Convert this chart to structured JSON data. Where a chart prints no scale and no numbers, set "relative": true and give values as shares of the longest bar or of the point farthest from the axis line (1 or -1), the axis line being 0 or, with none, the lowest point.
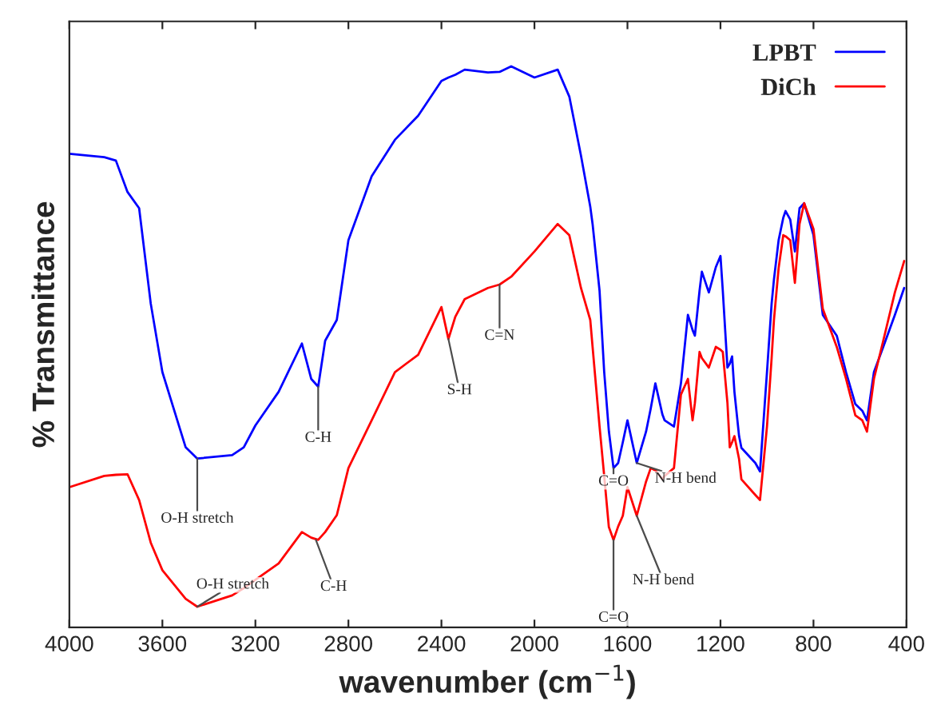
{
  "chart_data": {
    "type": "line",
    "relative": true,
    "xlabel": "wavenumber (cm$^{−1}$)",
    "ylabel": "% Transmittance",
    "xlim": [
      4000,
      400
    ],
    "xticks": [
      4000,
      3600,
      3200,
      2800,
      2400,
      2000,
      1600,
      1200,
      800,
      400
    ],
    "legend": "top right",
    "grid": false,
    "marker": "none",
    "line_style": "solid",
    "x": [
      4000,
      3850,
      3800,
      3750,
      3700,
      3650,
      3600,
      3500,
      3450,
      3300,
      3250,
      3200,
      3100,
      3000,
      2960,
      2930,
      2900,
      2850,
      2800,
      2700,
      2600,
      2500,
      2400,
      2370,
      2340,
      2300,
      2200,
      2150,
      2100,
      2000,
      1900,
      1850,
      1800,
      1760,
      1750,
      1720,
      1700,
      1680,
      1660,
      1640,
      1620,
      1600,
      1560,
      1520,
      1500,
      1480,
      1450,
      1440,
      1400,
      1370,
      1340,
      1320,
      1310,
      1290,
      1280,
      1250,
      1220,
      1200,
      1190,
      1170,
      1160,
      1150,
      1140,
      1120,
      1110,
      1050,
      1030,
      1000,
      980,
      970,
      950,
      930,
      920,
      900,
      880,
      860,
      840,
      800,
      760,
      700,
      660,
      620,
      590,
      570,
      540,
      500,
      450,
      410
    ],
    "series": [
      {
        "name": "LPBT",
        "color": "#0000ff",
        "values": [
          0.844,
          0.838,
          0.832,
          0.776,
          0.747,
          0.577,
          0.455,
          0.321,
          0.301,
          0.307,
          0.321,
          0.36,
          0.42,
          0.506,
          0.443,
          0.429,
          0.511,
          0.548,
          0.69,
          0.804,
          0.869,
          0.912,
          0.974,
          0.98,
          0.985,
          0.994,
          0.989,
          0.99,
          1.0,
          0.98,
          0.994,
          0.946,
          0.841,
          0.75,
          0.719,
          0.6,
          0.455,
          0.35,
          0.284,
          0.293,
          0.33,
          0.369,
          0.293,
          0.349,
          0.39,
          0.435,
          0.38,
          0.369,
          0.358,
          0.435,
          0.557,
          0.53,
          0.52,
          0.6,
          0.634,
          0.597,
          0.642,
          0.662,
          0.6,
          0.463,
          0.47,
          0.483,
          0.42,
          0.341,
          0.32,
          0.293,
          0.278,
          0.455,
          0.577,
          0.62,
          0.69,
          0.73,
          0.742,
          0.727,
          0.67,
          0.747,
          0.756,
          0.699,
          0.557,
          0.52,
          0.455,
          0.398,
          0.386,
          0.369,
          0.455,
          0.5,
          0.557,
          0.605
        ]
      },
      {
        "name": "DiCh",
        "color": "#ff0000",
        "values": [
          0.25,
          0.27,
          0.272,
          0.273,
          0.227,
          0.151,
          0.102,
          0.051,
          0.037,
          0.057,
          0.07,
          0.085,
          0.114,
          0.17,
          0.16,
          0.156,
          0.17,
          0.2,
          0.284,
          0.369,
          0.455,
          0.486,
          0.571,
          0.514,
          0.554,
          0.585,
          0.605,
          0.611,
          0.625,
          0.67,
          0.719,
          0.699,
          0.605,
          0.548,
          0.5,
          0.358,
          0.27,
          0.179,
          0.156,
          0.18,
          0.199,
          0.25,
          0.199,
          0.26,
          0.284,
          0.28,
          0.264,
          0.27,
          0.284,
          0.415,
          0.443,
          0.369,
          0.4,
          0.491,
          0.48,
          0.463,
          0.5,
          0.495,
          0.491,
          0.4,
          0.321,
          0.33,
          0.341,
          0.3,
          0.264,
          0.236,
          0.227,
          0.358,
          0.48,
          0.548,
          0.64,
          0.699,
          0.697,
          0.69,
          0.614,
          0.719,
          0.756,
          0.71,
          0.568,
          0.5,
          0.443,
          0.378,
          0.369,
          0.349,
          0.443,
          0.511,
          0.597,
          0.653
        ]
      }
    ],
    "annotations": [
      {
        "text": "O-H stretch",
        "x": 3450,
        "y": 0.301
      },
      {
        "text": "C-H",
        "x": 2930,
        "y": 0.429
      },
      {
        "text": "O-H stretch",
        "x": 3450,
        "y": 0.037
      },
      {
        "text": "C-H",
        "x": 2940,
        "y": 0.156
      },
      {
        "text": "S-H",
        "x": 2370,
        "y": 0.514
      },
      {
        "text": "C=N",
        "x": 2150,
        "y": 0.611
      },
      {
        "text": "C=O",
        "x": 1660,
        "y": 0.284
      },
      {
        "text": "N-H bend",
        "x": 1560,
        "y": 0.293
      },
      {
        "text": "C=O",
        "x": 1660,
        "y": 0.156
      },
      {
        "text": "N-H bend",
        "x": 1560,
        "y": 0.199
      }
    ]
  }
}
